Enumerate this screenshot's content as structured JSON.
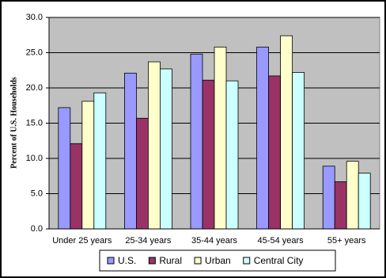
{
  "chart_data": {
    "type": "bar",
    "y_label": "Percent of U.S. Households",
    "categories": [
      "Under 25 years",
      "25-34 years",
      "35-44 years",
      "45-54 years",
      "55+ years"
    ],
    "series": [
      {
        "name": "U.S.",
        "color": "#9999ff",
        "values": [
          17.2,
          22.1,
          24.8,
          25.8,
          8.9
        ]
      },
      {
        "name": "Rural",
        "color": "#993366",
        "values": [
          12.1,
          15.7,
          21.1,
          21.7,
          6.7
        ]
      },
      {
        "name": "Urban",
        "color": "#ffffcc",
        "values": [
          18.1,
          23.7,
          25.8,
          27.4,
          9.6
        ]
      },
      {
        "name": "Central City",
        "color": "#ccffff",
        "values": [
          19.3,
          22.7,
          21.0,
          22.2,
          7.9
        ]
      }
    ],
    "ylim": [
      0,
      30
    ],
    "yticks": [
      {
        "value": 0,
        "label": "0.0"
      },
      {
        "value": 5,
        "label": "5.0"
      },
      {
        "value": 10,
        "label": "10.0"
      },
      {
        "value": 15,
        "label": "15.0"
      },
      {
        "value": 20,
        "label": "20.0"
      },
      {
        "value": 25,
        "label": "25.0"
      },
      {
        "value": 30,
        "label": "30.0"
      }
    ],
    "grid": true,
    "plot_background": "#c0c0c0",
    "legend": "bottom"
  }
}
